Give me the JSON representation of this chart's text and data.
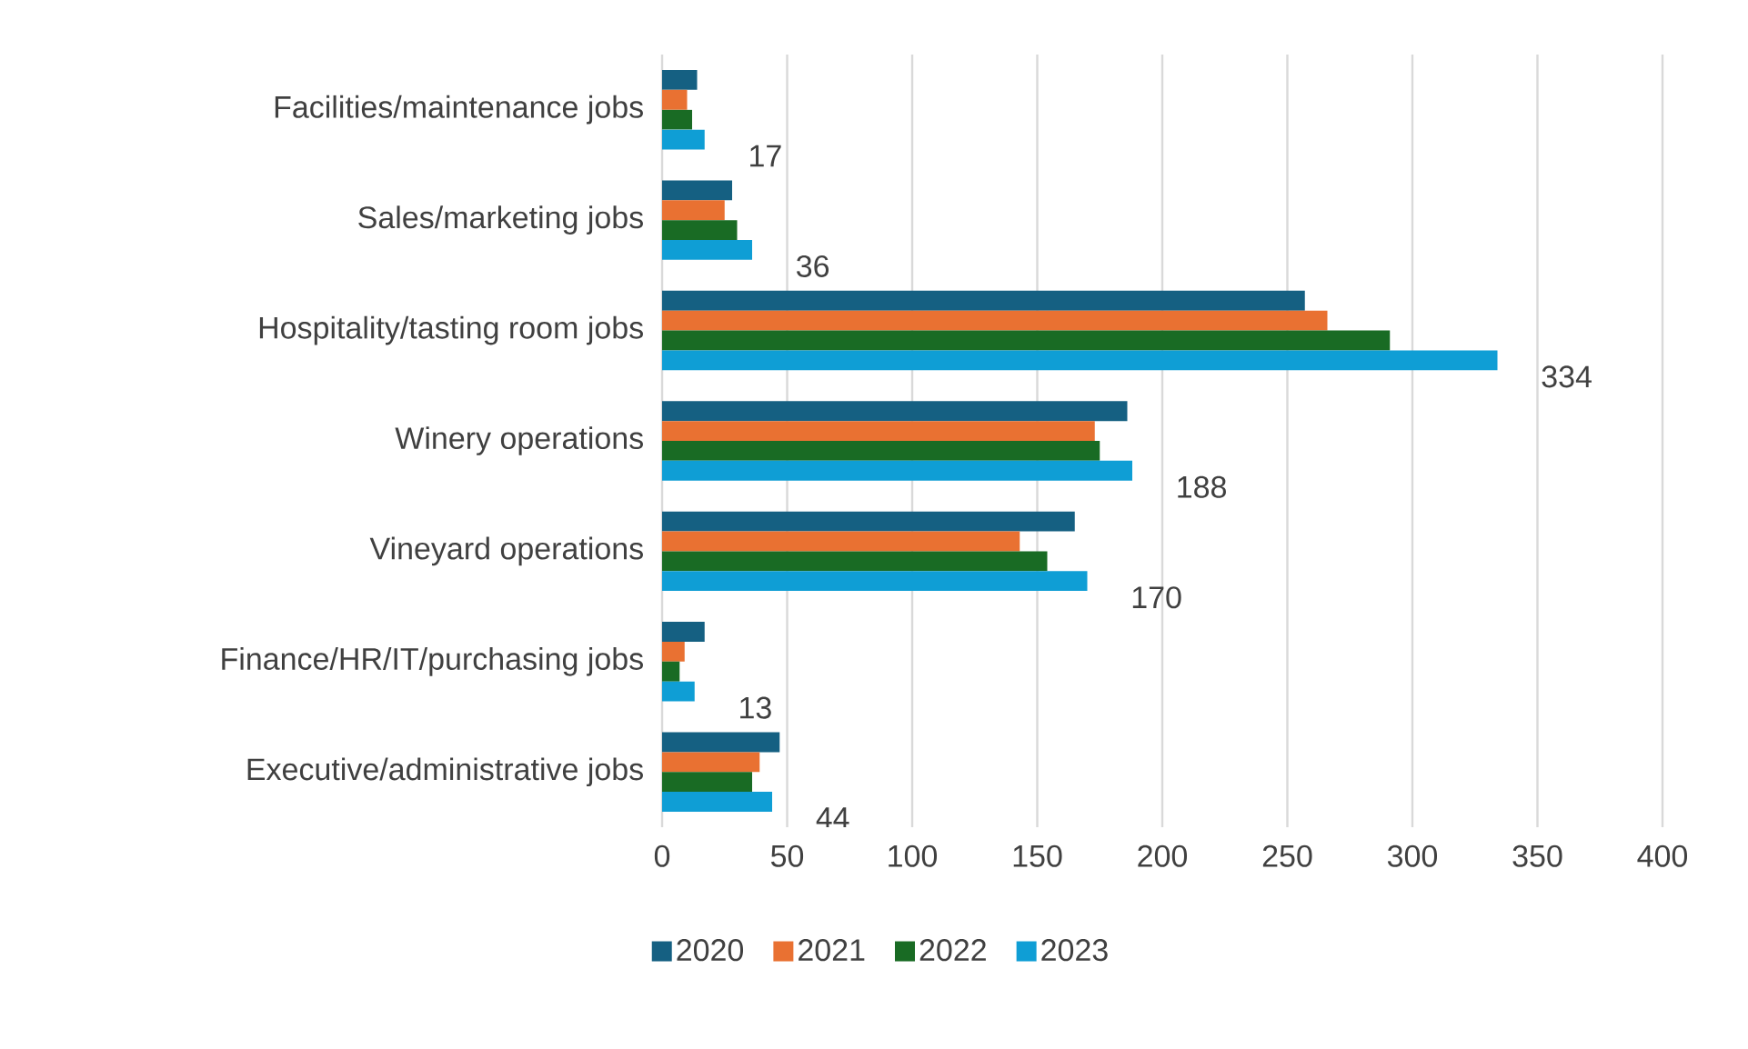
{
  "chart_data": {
    "type": "bar",
    "orientation": "horizontal",
    "categories": [
      "Facilities/maintenance jobs",
      "Sales/marketing jobs",
      "Hospitality/tasting room jobs",
      "Winery operations",
      "Vineyard operations",
      "Finance/HR/IT/purchasing jobs",
      "Executive/administrative jobs"
    ],
    "series": [
      {
        "name": "2020",
        "color": "#156082",
        "values": [
          14,
          28,
          257,
          186,
          165,
          17,
          47
        ]
      },
      {
        "name": "2021",
        "color": "#e97132",
        "values": [
          10,
          25,
          266,
          173,
          143,
          9,
          39
        ]
      },
      {
        "name": "2022",
        "color": "#196b24",
        "values": [
          12,
          30,
          291,
          175,
          154,
          7,
          36
        ]
      },
      {
        "name": "2023",
        "color": "#0f9ed5",
        "values": [
          17,
          36,
          334,
          188,
          170,
          13,
          44
        ],
        "value_labels": [
          "17",
          "36",
          "334",
          "188",
          "170",
          "13",
          "44"
        ]
      }
    ],
    "xlim": [
      0,
      400
    ],
    "xticks": [
      0,
      50,
      100,
      150,
      200,
      250,
      300,
      350,
      400
    ],
    "grid": "x",
    "legend": "bottom"
  }
}
